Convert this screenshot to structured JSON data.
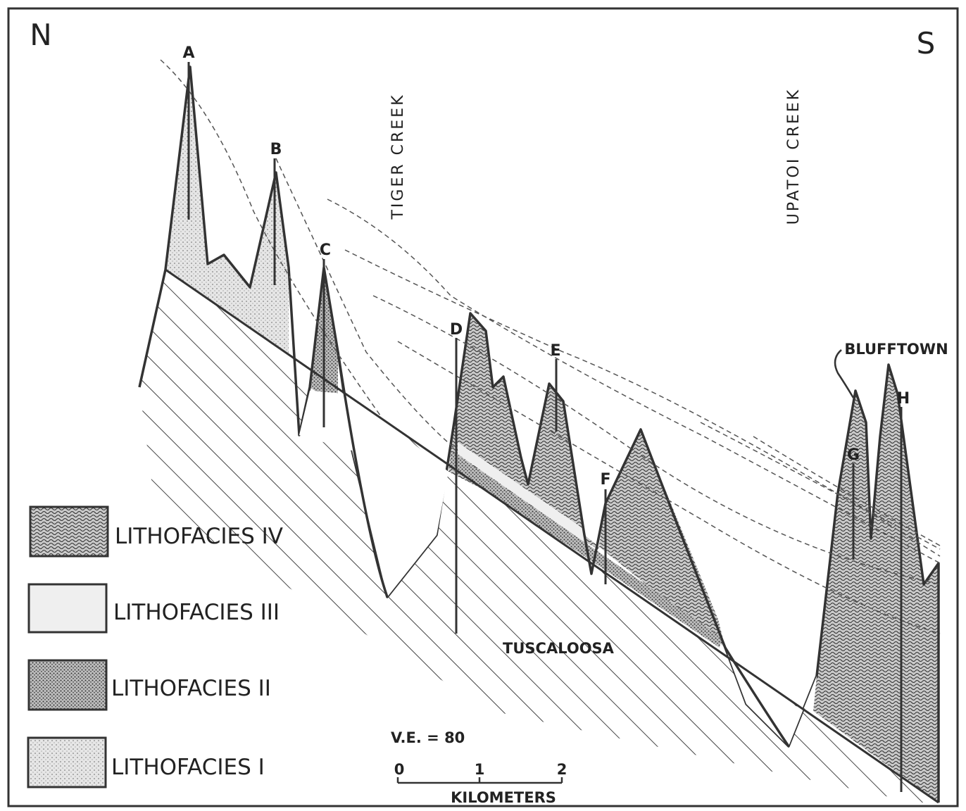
{
  "compass": {
    "north": "N",
    "south": "S"
  },
  "wells": [
    {
      "label": "A"
    },
    {
      "label": "B"
    },
    {
      "label": "C"
    },
    {
      "label": "D"
    },
    {
      "label": "E"
    },
    {
      "label": "F"
    },
    {
      "label": "G"
    },
    {
      "label": "H"
    }
  ],
  "creeks": [
    {
      "label": "TIGER CREEK"
    },
    {
      "label": "UPATOI CREEK"
    }
  ],
  "formations": {
    "upper": "BLUFFTOWN",
    "lower": "TUSCALOOSA"
  },
  "legend": [
    {
      "label": "LITHOFACIES IV"
    },
    {
      "label": "LITHOFACIES III"
    },
    {
      "label": "LITHOFACIES II"
    },
    {
      "label": "LITHOFACIES I"
    }
  ],
  "scale": {
    "exaggeration": "V.E. = 80",
    "ticks": [
      0,
      1,
      2
    ],
    "unit": "KILOMETERS"
  }
}
